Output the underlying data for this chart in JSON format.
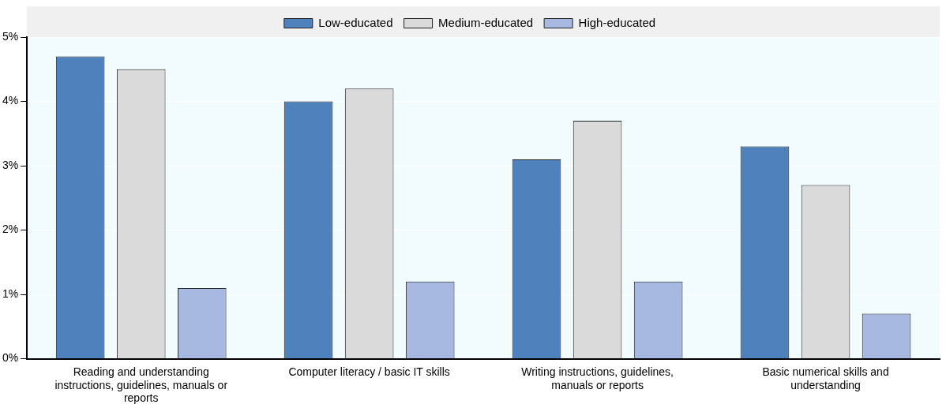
{
  "chart_data": {
    "type": "bar",
    "categories": [
      "Reading and understanding instructions, guidelines, manuals or reports",
      "Computer literacy / basic IT skills",
      "Writing instructions, guidelines, manuals or reports",
      "Basic numerical skills and understanding"
    ],
    "series": [
      {
        "name": "Low-educated",
        "color": "#4f81bd",
        "values": [
          4.7,
          4.0,
          3.1,
          3.3
        ]
      },
      {
        "name": "Medium-educated",
        "color": "#dadada",
        "values": [
          4.5,
          4.2,
          3.7,
          2.7
        ]
      },
      {
        "name": "High-educated",
        "color": "#a7b8e1",
        "values": [
          1.1,
          1.2,
          1.2,
          0.7
        ]
      }
    ],
    "ylim": [
      0,
      5
    ],
    "yticks": [
      {
        "value": 0,
        "label": "0%"
      },
      {
        "value": 1,
        "label": "1%"
      },
      {
        "value": 2,
        "label": "2%"
      },
      {
        "value": 3,
        "label": "3%"
      },
      {
        "value": 4,
        "label": "4%"
      },
      {
        "value": 5,
        "label": "5%"
      }
    ],
    "grid": "y",
    "legend": "top"
  }
}
